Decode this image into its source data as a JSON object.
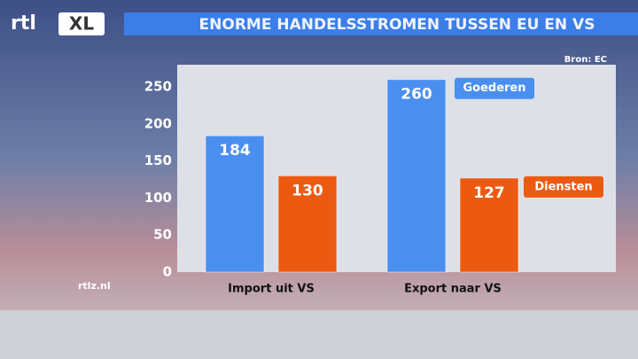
{
  "branding": {
    "logo": "rtl",
    "logo_badge": "XL",
    "website": "rtlz.nl"
  },
  "chart_data": {
    "type": "bar",
    "title": "ENORME HANDELSSTROMEN TUSSEN EU EN VS",
    "source": "Bron: EC",
    "categories": [
      "Import uit VS",
      "Export naar VS"
    ],
    "series": [
      {
        "name": "Goederen",
        "color": "#4a8ff0",
        "values": [
          184,
          260
        ]
      },
      {
        "name": "Diensten",
        "color": "#ec5a12",
        "values": [
          130,
          127
        ]
      }
    ],
    "ylim": [
      0,
      280
    ],
    "yticks": [
      0,
      50,
      100,
      150,
      200,
      250
    ],
    "grid": false
  }
}
